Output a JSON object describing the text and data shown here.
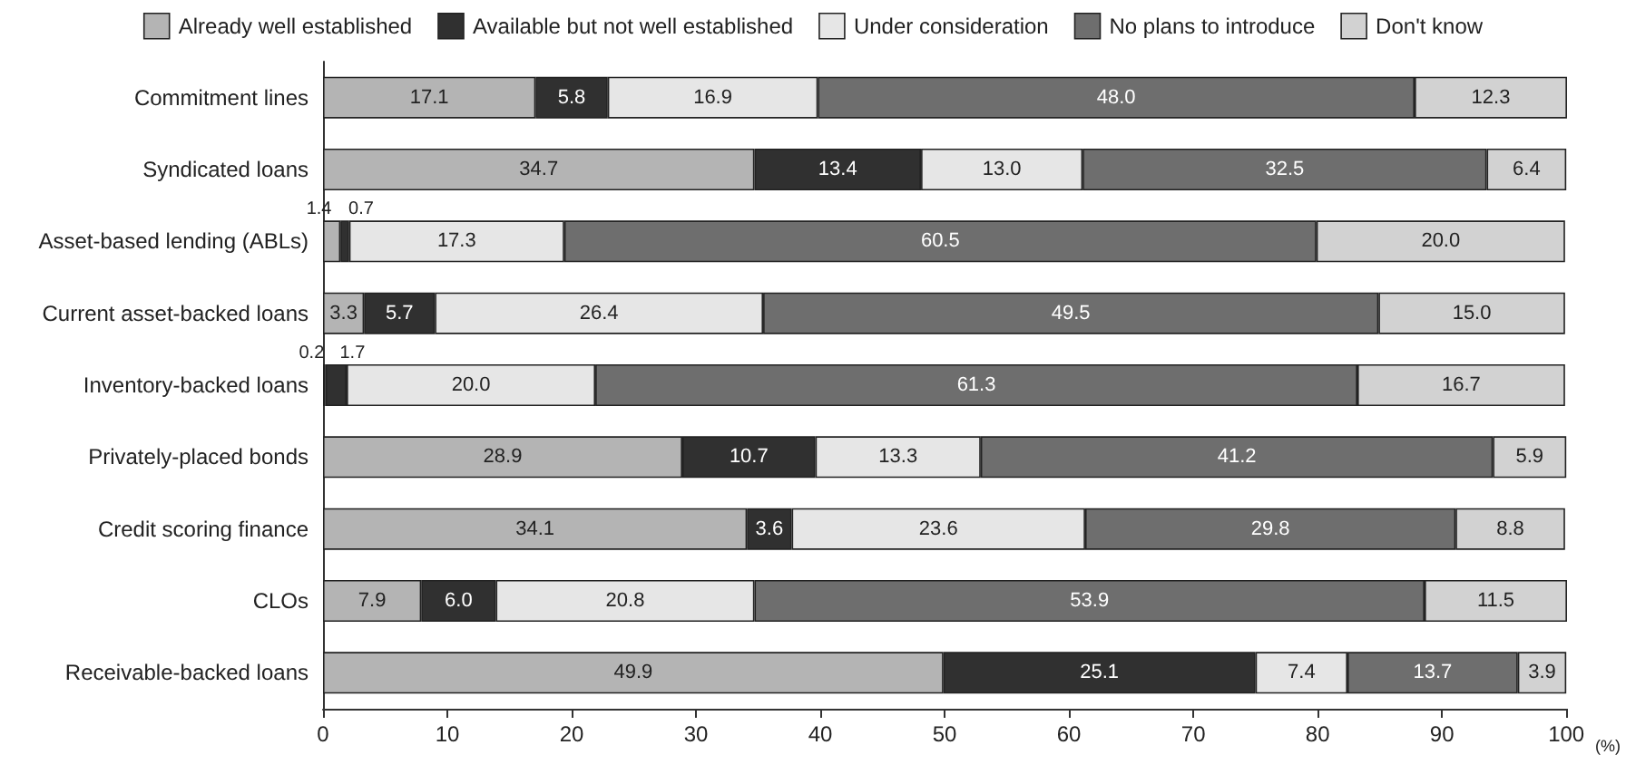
{
  "chart_data": {
    "type": "bar",
    "orientation": "horizontal",
    "stacked": true,
    "xlabel": "(%)",
    "categories": [
      "Commitment lines",
      "Syndicated loans",
      "Asset-based lending (ABLs)",
      "Current asset-backed loans",
      "Inventory-backed loans",
      "Privately-placed bonds",
      "Credit scoring finance",
      "CLOs",
      "Receivable-backed loans"
    ],
    "series": [
      {
        "name": "Already well established",
        "color": "#b4b4b4",
        "values": [
          17.1,
          34.7,
          1.4,
          3.3,
          0.2,
          28.9,
          34.1,
          7.9,
          49.9
        ],
        "value_labels": [
          "17.1",
          "34.7",
          "1.4",
          "3.3",
          "0.2",
          "28.9",
          "34.1",
          "7.9",
          "49.9"
        ]
      },
      {
        "name": "Available but not well established",
        "color": "#303030",
        "values": [
          5.8,
          13.4,
          0.7,
          5.7,
          1.7,
          10.7,
          3.6,
          6.0,
          25.1
        ],
        "value_labels": [
          "5.8",
          "13.4",
          "0.7",
          "5.7",
          "1.7",
          "10.7",
          "3.6",
          "6.0",
          "25.1"
        ]
      },
      {
        "name": "Under consideration",
        "color": "#e6e6e6",
        "values": [
          16.9,
          13.0,
          17.3,
          26.4,
          20.0,
          13.3,
          23.6,
          20.8,
          7.4
        ],
        "value_labels": [
          "16.9",
          "13.0",
          "17.3",
          "26.4",
          "20.0",
          "13.3",
          "23.6",
          "20.8",
          "7.4"
        ]
      },
      {
        "name": "No plans to introduce",
        "color": "#6e6e6e",
        "values": [
          48.0,
          32.5,
          60.5,
          49.5,
          61.3,
          41.2,
          29.8,
          53.9,
          13.7
        ],
        "value_labels": [
          "48.0",
          "32.5",
          "60.5",
          "49.5",
          "61.3",
          "41.2",
          "29.8",
          "53.9",
          "13.7"
        ]
      },
      {
        "name": "Don't know",
        "color": "#d2d2d2",
        "values": [
          12.3,
          6.4,
          20.0,
          15.0,
          16.7,
          5.9,
          8.8,
          11.5,
          3.9
        ],
        "value_labels": [
          "12.3",
          "6.4",
          "20.0",
          "15.0",
          "16.7",
          "5.9",
          "8.8",
          "11.5",
          "3.9"
        ]
      }
    ],
    "xlim": [
      0,
      100
    ],
    "xticks": [
      0,
      10,
      20,
      30,
      40,
      50,
      60,
      70,
      80,
      90,
      100
    ],
    "grid": false,
    "legend": "top"
  }
}
